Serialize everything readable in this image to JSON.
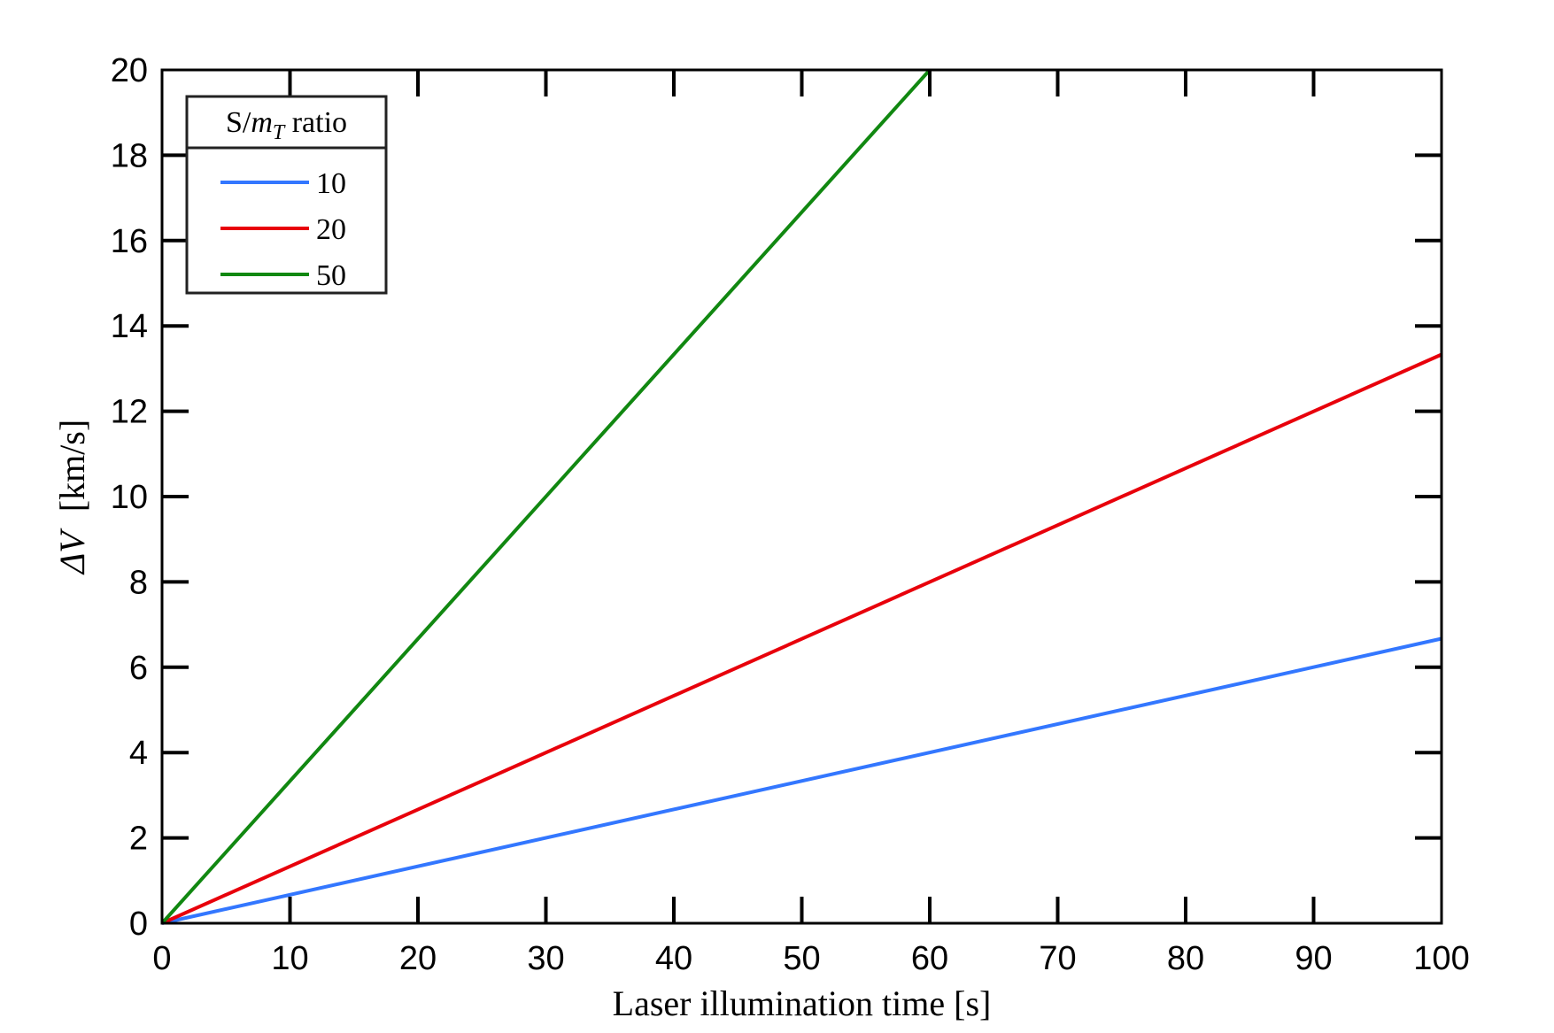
{
  "chart_data": {
    "type": "line",
    "title": "",
    "xlabel": "Laser illumination time [s]",
    "ylabel_symbol": "ΔV",
    "ylabel_unit": "[km/s]",
    "xlim": [
      0,
      100
    ],
    "ylim": [
      0,
      20
    ],
    "xticks": [
      0,
      10,
      20,
      30,
      40,
      50,
      60,
      70,
      80,
      90,
      100
    ],
    "yticks": [
      0,
      2,
      4,
      6,
      8,
      10,
      12,
      14,
      16,
      18,
      20
    ],
    "grid": false,
    "legend": {
      "placement": "top-left",
      "title_prefix": "S/",
      "title_var": "m",
      "title_sub": "T",
      "title_suffix": " ratio"
    },
    "series": [
      {
        "name": "10",
        "color": "#3377ff",
        "x": [
          0,
          100
        ],
        "y": [
          0,
          6.67
        ]
      },
      {
        "name": "20",
        "color": "#e8000b",
        "x": [
          0,
          100
        ],
        "y": [
          0,
          13.33
        ]
      },
      {
        "name": "50",
        "color": "#118811",
        "x": [
          0,
          60
        ],
        "y": [
          0,
          20
        ]
      }
    ]
  }
}
